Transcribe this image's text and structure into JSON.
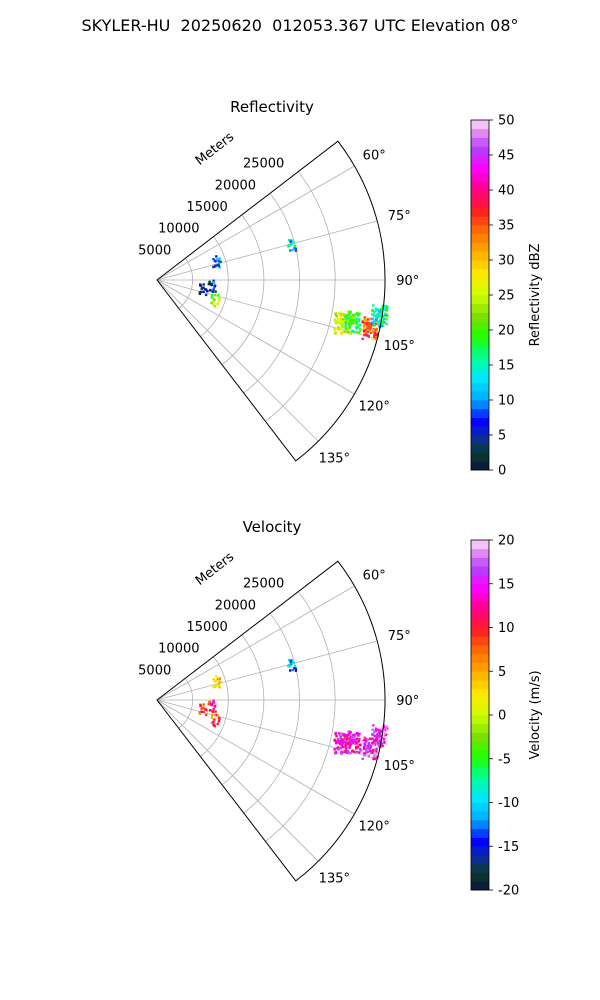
{
  "suptitle": "SKYLER-HU  20250620  012053.367 UTC Elevation 08°",
  "chart_data": [
    {
      "type": "polar_sector",
      "title": "Reflectivity",
      "radial_label": "Meters",
      "radial_ticks": [
        5000,
        10000,
        15000,
        20000,
        25000
      ],
      "rlim": [
        0,
        32000
      ],
      "azimuth_range_deg": [
        52.5,
        142.5
      ],
      "azimuth_ticks_deg": [
        60,
        75,
        90,
        105,
        120,
        135
      ],
      "grid": true,
      "colorbar": {
        "label": "Reflectivity dBZ",
        "range": [
          0,
          50
        ],
        "ticks": [
          0,
          5,
          10,
          15,
          20,
          25,
          30,
          35,
          40,
          45,
          50
        ]
      },
      "echoes": [
        {
          "az_deg": 103,
          "range_m": 26500,
          "value": 25
        },
        {
          "az_deg": 102,
          "range_m": 28000,
          "value": 20
        },
        {
          "az_deg": 102.5,
          "range_m": 30500,
          "value": 35
        },
        {
          "az_deg": 99,
          "range_m": 31500,
          "value": 15
        },
        {
          "az_deg": 109,
          "range_m": 8500,
          "value": 22
        },
        {
          "az_deg": 75,
          "range_m": 19500,
          "value": 13
        },
        {
          "az_deg": 72,
          "range_m": 8600,
          "value": 8
        },
        {
          "az_deg": 95,
          "range_m": 7700,
          "value": 6
        },
        {
          "az_deg": 100,
          "range_m": 6500,
          "value": 3
        }
      ]
    },
    {
      "type": "polar_sector",
      "title": "Velocity",
      "radial_label": "Meters",
      "radial_ticks": [
        5000,
        10000,
        15000,
        20000,
        25000
      ],
      "rlim": [
        0,
        32000
      ],
      "azimuth_range_deg": [
        52.5,
        142.5
      ],
      "azimuth_ticks_deg": [
        60,
        75,
        90,
        105,
        120,
        135
      ],
      "grid": true,
      "colorbar": {
        "label": "Velocity (m/s)",
        "range": [
          -20,
          20
        ],
        "ticks": [
          -20,
          -15,
          -10,
          -5,
          0,
          5,
          10,
          15,
          20
        ]
      },
      "echoes": [
        {
          "az_deg": 103,
          "range_m": 26500,
          "value": 14
        },
        {
          "az_deg": 102,
          "range_m": 28000,
          "value": 15
        },
        {
          "az_deg": 102.5,
          "range_m": 30500,
          "value": 16
        },
        {
          "az_deg": 99,
          "range_m": 31500,
          "value": 16
        },
        {
          "az_deg": 109,
          "range_m": 8500,
          "value": 8
        },
        {
          "az_deg": 75,
          "range_m": 19500,
          "value": -12
        },
        {
          "az_deg": 72,
          "range_m": 8600,
          "value": 3
        },
        {
          "az_deg": 95,
          "range_m": 7700,
          "value": 12
        },
        {
          "az_deg": 100,
          "range_m": 6500,
          "value": 8
        }
      ]
    }
  ]
}
